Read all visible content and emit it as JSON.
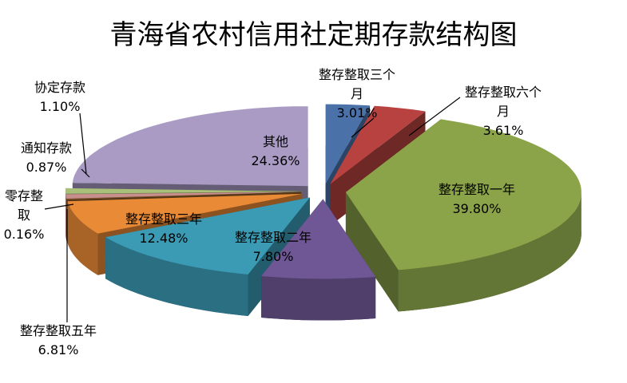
{
  "chart_data": {
    "type": "pie3d",
    "title": "青海省农村信用社定期存款结构图",
    "categories": [
      "整存整取三个月",
      "整存整取六个月",
      "整存整取一年",
      "整存整取二年",
      "整存整取三年",
      "整存整取五年",
      "零存整取",
      "通知存款",
      "协定存款",
      "其他"
    ],
    "values": [
      3.01,
      3.61,
      39.8,
      7.8,
      12.48,
      6.81,
      0.16,
      0.87,
      1.1,
      24.36
    ],
    "value_labels": [
      "3.01%",
      "3.61%",
      "39.80%",
      "7.80%",
      "12.48%",
      "6.81%",
      "0.16%",
      "0.87%",
      "1.10%",
      "24.36%"
    ],
    "colors": [
      "#4a72a8",
      "#b8423f",
      "#8ba449",
      "#6f5694",
      "#3b9ab4",
      "#e98a36",
      "#8a5a2a",
      "#c98f8d",
      "#a9c07a",
      "#a99bc4"
    ]
  }
}
